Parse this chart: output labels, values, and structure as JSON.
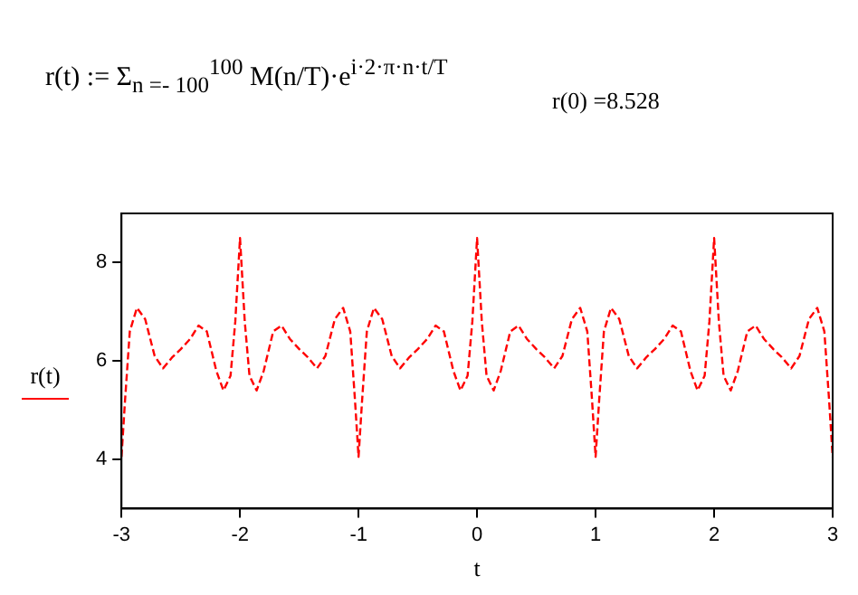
{
  "chart_data": {
    "type": "line",
    "xlabel": "t",
    "ylabel": "r(t)",
    "annotations": [
      "r(t) := Σ$_{n =- 100}$$^{100}$ M(n/T)·e$^{i·2·π·n·t/T}$",
      "r(0) =8.528"
    ],
    "xlim": [
      -3,
      3
    ],
    "xticks": [
      -3,
      -2,
      -1,
      0,
      1,
      2,
      3
    ],
    "ylim": [
      3,
      9
    ],
    "yticks": [
      4,
      6,
      8
    ],
    "grid": false,
    "line_style": "dashed",
    "marker": "none",
    "series": [
      {
        "color": "#ff0000",
        "x": [
          -3,
          -2.97,
          -2.93,
          -2.87,
          -2.8,
          -2.72,
          -2.65,
          -2.57,
          -2.5,
          -2.42,
          -2.35,
          -2.28,
          -2.2,
          -2.14,
          -2.08,
          -2.04,
          -2,
          -1.96,
          -1.92,
          -1.86,
          -1.8,
          -1.72,
          -1.65,
          -1.58,
          -1.5,
          -1.43,
          -1.35,
          -1.28,
          -1.2,
          -1.13,
          -1.07,
          -1.03,
          -1,
          -0.97,
          -0.93,
          -0.87,
          -0.8,
          -0.72,
          -0.65,
          -0.57,
          -0.5,
          -0.42,
          -0.35,
          -0.28,
          -0.2,
          -0.14,
          -0.08,
          -0.04,
          0,
          0.04,
          0.08,
          0.14,
          0.2,
          0.28,
          0.35,
          0.42,
          0.5,
          0.57,
          0.65,
          0.72,
          0.8,
          0.87,
          0.93,
          0.97,
          1,
          1.03,
          1.07,
          1.13,
          1.2,
          1.28,
          1.35,
          1.43,
          1.5,
          1.58,
          1.65,
          1.72,
          1.8,
          1.86,
          1.92,
          1.96,
          2,
          2.04,
          2.08,
          2.14,
          2.2,
          2.28,
          2.35,
          2.42,
          2.5,
          2.57,
          2.65,
          2.72,
          2.8,
          2.87,
          2.93,
          2.97,
          3
        ],
        "values": [
          4.05,
          5.2,
          6.6,
          7.08,
          6.85,
          6.1,
          5.85,
          6.08,
          6.24,
          6.45,
          6.72,
          6.6,
          5.8,
          5.4,
          5.7,
          6.8,
          8.5,
          6.8,
          5.7,
          5.4,
          5.8,
          6.6,
          6.72,
          6.45,
          6.24,
          6.08,
          5.85,
          6.1,
          6.85,
          7.08,
          6.6,
          5.2,
          4.05,
          5.2,
          6.6,
          7.08,
          6.85,
          6.1,
          5.85,
          6.08,
          6.24,
          6.45,
          6.72,
          6.6,
          5.8,
          5.4,
          5.7,
          6.8,
          8.5,
          6.8,
          5.7,
          5.4,
          5.8,
          6.6,
          6.72,
          6.45,
          6.24,
          6.08,
          5.85,
          6.1,
          6.85,
          7.08,
          6.6,
          5.2,
          4.05,
          5.2,
          6.6,
          7.08,
          6.85,
          6.1,
          5.85,
          6.08,
          6.24,
          6.45,
          6.72,
          6.6,
          5.8,
          5.4,
          5.7,
          6.8,
          8.5,
          6.8,
          5.7,
          5.4,
          5.8,
          6.6,
          6.72,
          6.45,
          6.24,
          6.08,
          5.85,
          6.1,
          6.85,
          7.08,
          6.6,
          5.2,
          4.05
        ]
      }
    ]
  }
}
